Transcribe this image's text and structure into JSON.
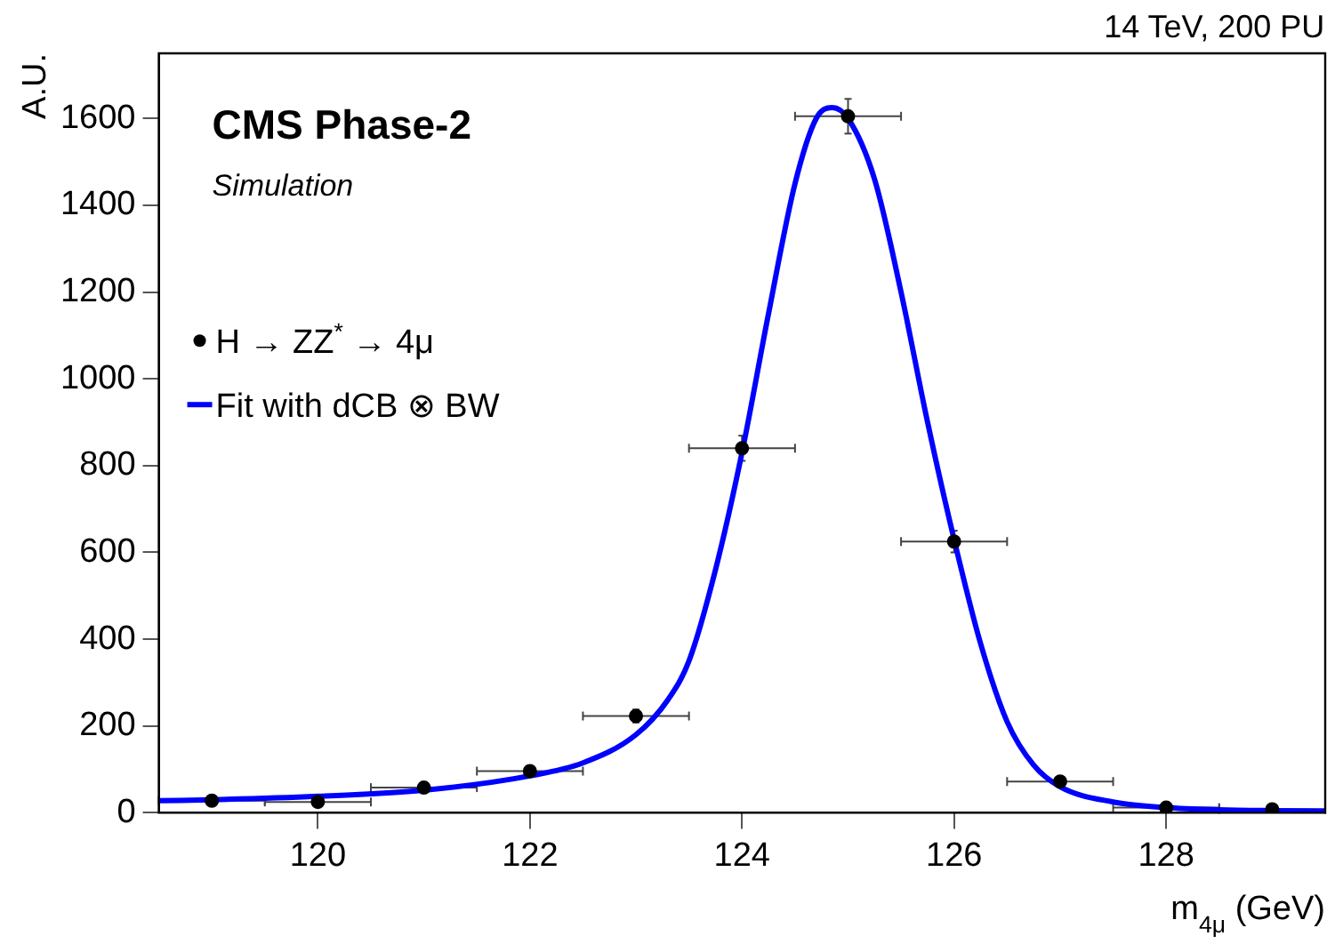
{
  "chart_data": {
    "type": "scatter",
    "title": "CMS Phase-2",
    "subtitle": "Simulation",
    "xlabel": "m$_{4μ}$ (GeV)",
    "ylabel": "A.U.",
    "annotations": [
      "14 TeV, 200 PU"
    ],
    "xlim": [
      118.5,
      129.5
    ],
    "xticks": [
      120,
      122,
      124,
      126,
      128
    ],
    "ylim": [
      0,
      1750
    ],
    "yticks": [
      0,
      200,
      400,
      600,
      800,
      1000,
      1200,
      1400,
      1600
    ],
    "grid": false,
    "legend": "left",
    "series": [
      {
        "name": "H → ZZ$^{*}$ → 4μ",
        "type": "scatter",
        "marker": "circle",
        "color": "#000000",
        "x": [
          119,
          120,
          121,
          122,
          123,
          124,
          125,
          126,
          127,
          128,
          129
        ],
        "values": [
          28,
          25,
          58,
          96,
          223,
          840,
          1605,
          625,
          72,
          12,
          8
        ],
        "errors": [
          5,
          5,
          8,
          10,
          15,
          29,
          40,
          25,
          9,
          3,
          3
        ],
        "xerrors": [
          0.5,
          0.5,
          0.5,
          0.5,
          0.5,
          0.5,
          0.5,
          0.5,
          0.5,
          0.5,
          0.5
        ]
      },
      {
        "name": "Fit with dCB ⊗ BW",
        "type": "line",
        "marker": "none",
        "line_style": "solid",
        "color": "#0000ff",
        "x": [
          118.5,
          119,
          120,
          121,
          122,
          122.5,
          123,
          123.3,
          123.5,
          123.75,
          124,
          124.25,
          124.5,
          124.7,
          124.85,
          125,
          125.25,
          125.5,
          125.75,
          126,
          126.25,
          126.5,
          126.75,
          127,
          127.5,
          128,
          128.5,
          129,
          129.5
        ],
        "values": [
          28,
          30,
          38,
          52,
          85,
          115,
          180,
          260,
          350,
          560,
          830,
          1150,
          1450,
          1600,
          1625,
          1600,
          1460,
          1200,
          900,
          630,
          390,
          210,
          110,
          60,
          25,
          12,
          7,
          5,
          4
        ]
      }
    ]
  }
}
